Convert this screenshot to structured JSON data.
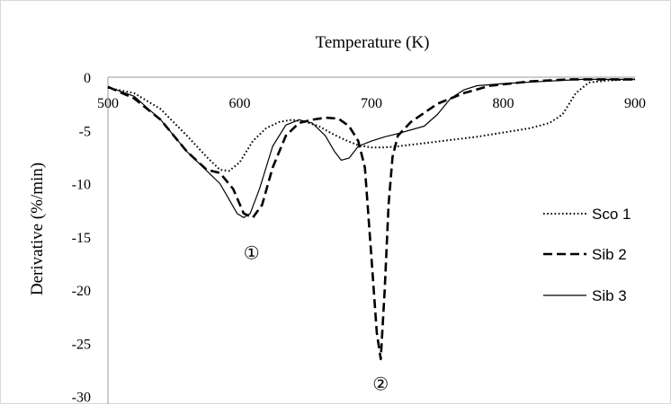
{
  "chart_data": {
    "type": "line",
    "title": "Temperature (K)",
    "xlabel": "",
    "ylabel": "Derivative (%/min)",
    "xlim": [
      500,
      900
    ],
    "ylim": [
      -30,
      0
    ],
    "x_ticks": [
      500,
      600,
      700,
      800,
      900
    ],
    "y_ticks": [
      0,
      -5,
      -10,
      -15,
      -20,
      -25,
      -30
    ],
    "x_tick_labels": [
      "500",
      "600",
      "700",
      "800",
      "900"
    ],
    "y_tick_labels": [
      "0",
      "-5",
      "-10",
      "-15",
      "-20",
      "-25",
      "-30"
    ],
    "grid": false,
    "legend_position": "right",
    "annotations": [
      {
        "text": "①",
        "x": 609,
        "y": -16.5
      },
      {
        "text": "②",
        "x": 707,
        "y": -28.8
      }
    ],
    "series": [
      {
        "name": "Sco 1",
        "style": "dotted",
        "color": "#000000",
        "x": [
          500,
          520,
          540,
          560,
          575,
          585,
          592,
          600,
          610,
          620,
          630,
          640,
          650,
          660,
          670,
          680,
          690,
          700,
          710,
          720,
          740,
          760,
          780,
          800,
          820,
          835,
          845,
          855,
          865,
          880,
          900
        ],
        "y": [
          -1.0,
          -1.5,
          -3.0,
          -5.5,
          -7.5,
          -8.7,
          -8.8,
          -8.0,
          -6.0,
          -4.8,
          -4.2,
          -4.0,
          -4.2,
          -4.6,
          -5.3,
          -5.9,
          -6.4,
          -6.6,
          -6.6,
          -6.5,
          -6.2,
          -5.9,
          -5.6,
          -5.2,
          -4.8,
          -4.3,
          -3.5,
          -1.5,
          -0.5,
          -0.3,
          -0.2
        ]
      },
      {
        "name": "Sib 2",
        "style": "dashed",
        "color": "#000000",
        "x": [
          500,
          520,
          540,
          560,
          575,
          585,
          595,
          603,
          610,
          617,
          625,
          635,
          645,
          655,
          665,
          675,
          683,
          690,
          695,
          700,
          704,
          707,
          710,
          713,
          716,
          720,
          730,
          750,
          770,
          790,
          820,
          850,
          880,
          900
        ],
        "y": [
          -0.9,
          -2.0,
          -4.0,
          -7.0,
          -8.7,
          -9.0,
          -10.5,
          -12.8,
          -13.2,
          -12.0,
          -8.5,
          -5.5,
          -4.3,
          -4.0,
          -3.8,
          -3.9,
          -4.6,
          -6.0,
          -8.5,
          -17.0,
          -24.0,
          -26.5,
          -20.0,
          -12.0,
          -7.5,
          -5.5,
          -4.2,
          -2.5,
          -1.5,
          -0.8,
          -0.4,
          -0.2,
          -0.2,
          -0.2
        ]
      },
      {
        "name": "Sib 3",
        "style": "solid",
        "color": "#000000",
        "x": [
          500,
          520,
          540,
          560,
          575,
          585,
          592,
          598,
          603,
          608,
          615,
          625,
          635,
          645,
          655,
          665,
          672,
          677,
          683,
          690,
          700,
          710,
          720,
          740,
          750,
          760,
          770,
          780,
          800,
          830,
          860,
          900
        ],
        "y": [
          -0.9,
          -1.8,
          -4.0,
          -7.0,
          -8.8,
          -10.0,
          -11.5,
          -12.8,
          -13.2,
          -12.8,
          -10.5,
          -6.5,
          -4.5,
          -4.0,
          -4.3,
          -5.5,
          -7.0,
          -7.8,
          -7.6,
          -6.5,
          -6.0,
          -5.6,
          -5.3,
          -4.6,
          -3.5,
          -2.0,
          -1.2,
          -0.8,
          -0.6,
          -0.4,
          -0.2,
          -0.2
        ]
      }
    ]
  }
}
